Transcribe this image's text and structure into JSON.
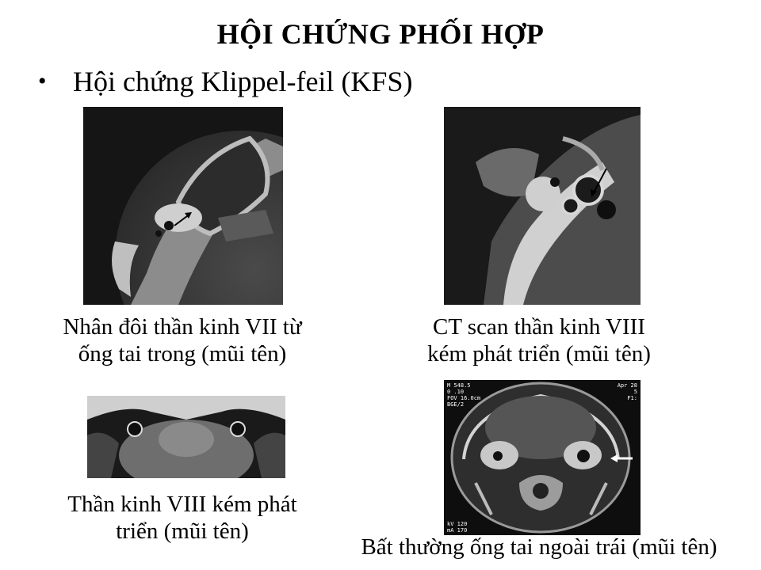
{
  "slide": {
    "title": "HỘI CHỨNG PHỐI HỢP",
    "bullet": "Hội chứng Klippel-feil (KFS)"
  },
  "figures": {
    "top_left": {
      "caption_lines": [
        "Nhân đôi thần kinh VII từ",
        "ống tai trong (mũi tên)"
      ]
    },
    "top_right": {
      "caption_lines": [
        "CT scan thần kinh VIII",
        "kém phát triển (mũi tên)"
      ]
    },
    "bottom_left": {
      "caption_lines": [
        "Thần kinh VIII kém phát",
        "triển (mũi tên)"
      ]
    },
    "bottom_right": {
      "caption_lines": [
        "Bất thường ống tai ngoài trái (mũi tên)"
      ],
      "overlay": {
        "top_left_lines": [
          "M 548.5",
          "0 .10",
          "FOV 16.0cm",
          "BGE/2"
        ],
        "top_right_lines": [
          "Apr 28",
          "5",
          "F1:"
        ],
        "bottom_left_lines": [
          "kV 120",
          "mA 170"
        ]
      }
    }
  }
}
